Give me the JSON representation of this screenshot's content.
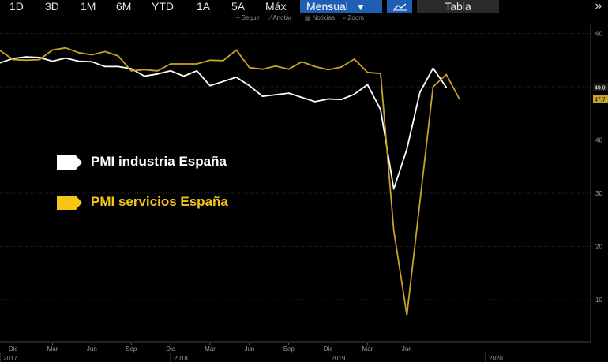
{
  "toolbar": {
    "ranges": [
      "1D",
      "3D",
      "1M",
      "6M",
      "YTD",
      "1A",
      "5A",
      "Máx"
    ],
    "period_selected": "Mensual",
    "period_arrow": "▼",
    "chart_type_icon": "line-chart-icon",
    "table_label": "Tabla",
    "more_icon": "double-chevron-right-icon",
    "accent_color": "#1e5fb5"
  },
  "subtoolbar": {
    "follow_label": "Seguir",
    "annotate_label": "Anotar",
    "news_label": "Noticias",
    "zoom_label": "Zoom"
  },
  "chart_data": {
    "type": "line",
    "title": "",
    "xlabel": "",
    "ylabel": "",
    "ylim": [
      2,
      62
    ],
    "yticks": [
      10,
      20,
      30,
      40,
      50,
      60
    ],
    "grid": true,
    "x_start": "2016-11",
    "x_end": "2020-08",
    "x_tick_labels": [
      {
        "date": "2016-12",
        "label": "Dic"
      },
      {
        "date": "2017-03",
        "label": "Mar"
      },
      {
        "date": "2017-06",
        "label": "Jun"
      },
      {
        "date": "2017-09",
        "label": "Sep"
      },
      {
        "date": "2017-12",
        "label": "Dic"
      },
      {
        "date": "2018-03",
        "label": "Mar"
      },
      {
        "date": "2018-06",
        "label": "Jun"
      },
      {
        "date": "2018-09",
        "label": "Sep"
      },
      {
        "date": "2018-12",
        "label": "Dic"
      },
      {
        "date": "2019-03",
        "label": "Mar"
      },
      {
        "date": "2019-06",
        "label": "Jun"
      }
    ],
    "year_labels": [
      {
        "date": "2016-11",
        "label": "2017"
      },
      {
        "date": "2017-12",
        "label": "2018"
      },
      {
        "date": "2018-12",
        "label": "2019"
      },
      {
        "date": "2019-12",
        "label": "2020"
      }
    ],
    "legend": [
      {
        "label": "PMI industria España",
        "color": "#ffffff"
      },
      {
        "label": "PMI servicios España",
        "color": "#f5c518"
      }
    ],
    "series": [
      {
        "name": "PMI industria España",
        "color": "#ffffff",
        "last_value_label": "49.9",
        "points": [
          [
            "2016-11",
            54.5
          ],
          [
            "2016-12",
            55.3
          ],
          [
            "2017-01",
            55.6
          ],
          [
            "2017-02",
            55.5
          ],
          [
            "2017-03",
            54.8
          ],
          [
            "2017-04",
            55.4
          ],
          [
            "2017-05",
            54.8
          ],
          [
            "2017-06",
            54.7
          ],
          [
            "2017-07",
            53.8
          ],
          [
            "2017-08",
            53.8
          ],
          [
            "2017-09",
            53.4
          ],
          [
            "2017-10",
            52.0
          ],
          [
            "2017-11",
            52.4
          ],
          [
            "2017-12",
            53.0
          ],
          [
            "2018-01",
            52.0
          ],
          [
            "2018-02",
            53.0
          ],
          [
            "2018-03",
            50.2
          ],
          [
            "2018-04",
            51.0
          ],
          [
            "2018-05",
            51.8
          ],
          [
            "2018-06",
            50.2
          ],
          [
            "2018-07",
            48.2
          ],
          [
            "2018-08",
            48.5
          ],
          [
            "2018-09",
            48.8
          ],
          [
            "2018-10",
            48.0
          ],
          [
            "2018-11",
            47.2
          ],
          [
            "2018-12",
            47.7
          ],
          [
            "2019-01",
            47.6
          ],
          [
            "2019-02",
            48.6
          ],
          [
            "2019-03",
            50.4
          ],
          [
            "2019-04",
            45.7
          ],
          [
            "2019-05",
            30.8
          ],
          [
            "2019-06",
            38.3
          ],
          [
            "2019-07",
            49.0
          ],
          [
            "2019-08",
            53.5
          ],
          [
            "2019-09",
            49.9
          ]
        ]
      },
      {
        "name": "PMI servicios España",
        "color": "#c9a227",
        "last_value_label": "47.7",
        "points": [
          [
            "2016-11",
            56.8
          ],
          [
            "2016-12",
            55.1
          ],
          [
            "2017-01",
            55.0
          ],
          [
            "2017-02",
            55.1
          ],
          [
            "2017-03",
            56.9
          ],
          [
            "2017-04",
            57.3
          ],
          [
            "2017-05",
            56.4
          ],
          [
            "2017-06",
            56.0
          ],
          [
            "2017-07",
            56.6
          ],
          [
            "2017-08",
            55.8
          ],
          [
            "2017-09",
            53.0
          ],
          [
            "2017-10",
            53.2
          ],
          [
            "2017-11",
            53.0
          ],
          [
            "2017-12",
            54.3
          ],
          [
            "2018-01",
            54.3
          ],
          [
            "2018-02",
            54.3
          ],
          [
            "2018-03",
            55.0
          ],
          [
            "2018-04",
            54.9
          ],
          [
            "2018-05",
            56.9
          ],
          [
            "2018-06",
            53.6
          ],
          [
            "2018-07",
            53.3
          ],
          [
            "2018-08",
            53.9
          ],
          [
            "2018-09",
            53.3
          ],
          [
            "2018-10",
            54.7
          ],
          [
            "2018-11",
            53.8
          ],
          [
            "2018-12",
            53.2
          ],
          [
            "2019-01",
            53.7
          ],
          [
            "2019-02",
            55.2
          ],
          [
            "2019-03",
            52.7
          ],
          [
            "2019-04",
            52.5
          ],
          [
            "2019-05",
            23.0
          ],
          [
            "2019-06",
            7.1
          ],
          [
            "2019-07",
            28.5
          ],
          [
            "2019-08",
            50.0
          ],
          [
            "2019-09",
            52.3
          ],
          [
            "2019-10",
            47.7
          ]
        ]
      }
    ]
  }
}
